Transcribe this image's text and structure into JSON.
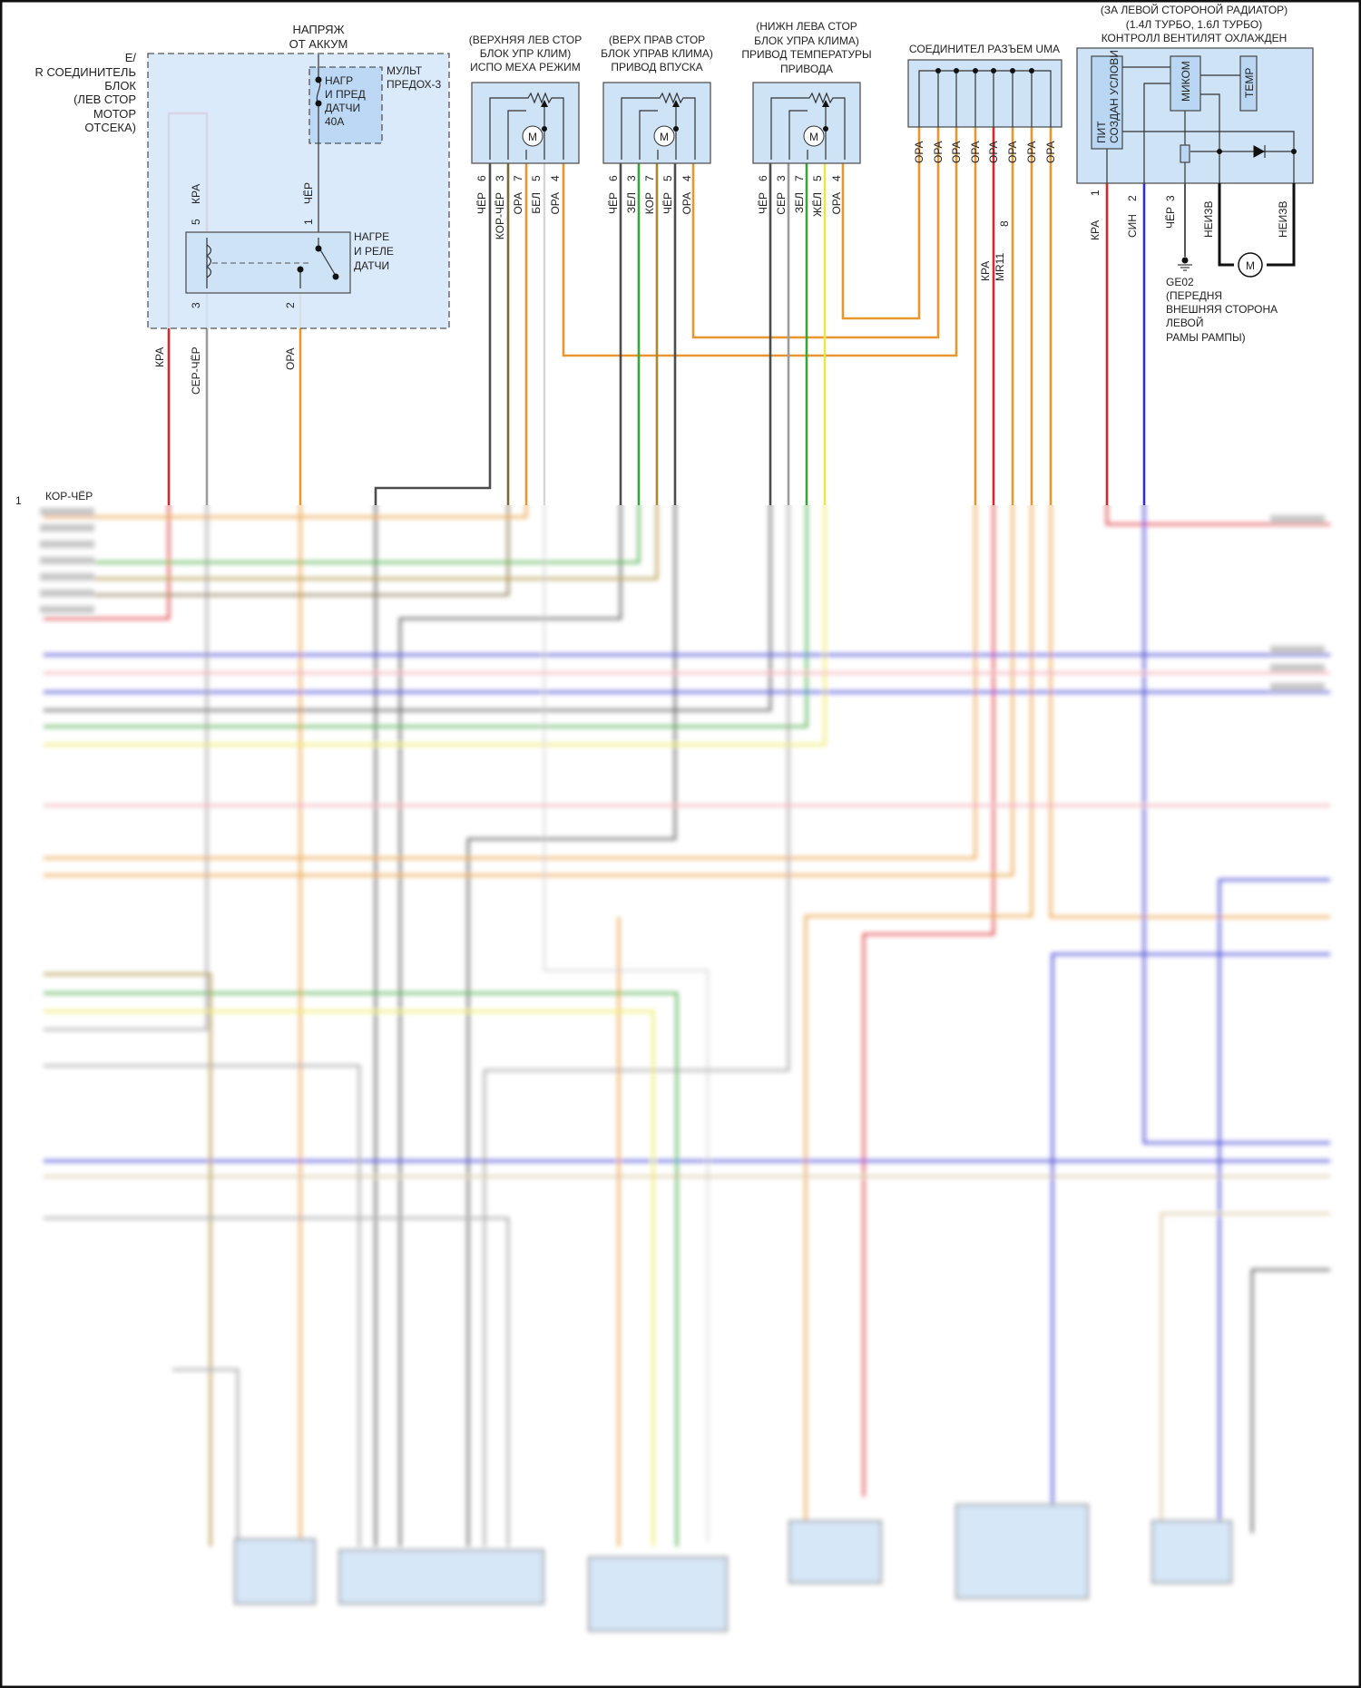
{
  "wire_colors": {
    "red": "#d9262b",
    "orange": "#e8962e",
    "black": "#4d4d4d",
    "gray": "#9c9c9c",
    "white": "#d6d6d6",
    "green": "#3aa537",
    "brown": "#a8892d",
    "yellow": "#ece64a",
    "blue": "#2f2fd0",
    "pink": "#f2a3ab",
    "tan": "#d6c29c",
    "kor_cher": "#7d6a3b"
  },
  "battery": {
    "lines": [
      "НАПРЯЖ",
      "ОТ АККУМ"
    ]
  },
  "er_block": {
    "label_lines": [
      "E/",
      "R СОЕДИНИТЕЛЬ",
      "БЛОК",
      "(ЛЕВ СТОР",
      "МОТОР",
      "ОТСЕКА)"
    ],
    "fuse_lines": [
      "НАГР",
      "И ПРЕД",
      "ДАТЧИ",
      "40А"
    ],
    "fuse_box_lines": [
      "МУЛЬТ",
      "ПРЕДОХ-3"
    ],
    "relay_lines": [
      "НАГРЕ",
      "И РЕЛЕ",
      "ДАТЧИ"
    ],
    "pins": {
      "p5": "5",
      "p1": "1",
      "p3": "3",
      "p2": "2"
    },
    "wires": {
      "p5": "КРА",
      "p1": "ЧЁР"
    },
    "out_wires": {
      "red": "КРА",
      "gray": "СЕР-ЧЁР",
      "orange": "ОРА"
    }
  },
  "left_connector": {
    "pin": "1",
    "wire": "КОР-ЧЁР"
  },
  "mode_actuator": {
    "lines": [
      "(ВЕРХНЯЯ ЛЕВ СТОР",
      "БЛОК УПР КЛИМ)",
      "ИСПО МЕХА РЕЖИМ"
    ],
    "motor": "M",
    "pins": [
      "6",
      "3",
      "7",
      "5",
      "4"
    ],
    "wires": [
      "ЧЁР",
      "КОР-ЧЁР",
      "ОРА",
      "БЕЛ",
      "ОРА"
    ]
  },
  "intake_actuator": {
    "lines": [
      "(ВЕРХ ПРАВ СТОР",
      "БЛОК УПРАВ КЛИМА)",
      "ПРИВОД ВПУСКА"
    ],
    "motor": "M",
    "pins": [
      "6",
      "3",
      "7",
      "5",
      "4"
    ],
    "wires": [
      "ЧЁР",
      "ЗЕЛ",
      "КОР",
      "ЧЁР",
      "ОРА"
    ]
  },
  "temp_actuator": {
    "lines": [
      "(НИЖН ЛЕВА СТОР",
      "БЛОК УПРА КЛИМА)",
      "ПРИВОД ТЕМПЕРАТУРЫ",
      "ПРИВОДА"
    ],
    "motor": "M",
    "pins": [
      "6",
      "3",
      "7",
      "5",
      "4"
    ],
    "wires": [
      "ЧЁР",
      "СЕР",
      "ЗЕЛ",
      "ЖЁЛ",
      "ОРА"
    ]
  },
  "uma_connector": {
    "title": "СОЕДИНИТЕЛ РАЗЪЕМ UMA",
    "wires": [
      "ОРА",
      "ОРА",
      "ОРА",
      "ОРА",
      "ОРА",
      "ОРА",
      "ОРА",
      "ОРА"
    ],
    "red_wire": {
      "pin": "8",
      "connector": "MR11",
      "wire": "КРА"
    }
  },
  "fan_controller": {
    "lines": [
      "(ЗА ЛЕВОЙ СТОРОНОЙ РАДИАТОР)",
      "(1.4Л ТУРБО, 1.6Л ТУРБО)",
      "КОНТРОЛЛ ВЕНТИЛЯТ ОХЛАЖДЕН"
    ],
    "power_block": [
      "ПИТ",
      "СОЗДАН УСЛОВИ"
    ],
    "micom": "МИКОМ",
    "temp": "ТЕМР",
    "pins": [
      "1",
      "2",
      "3"
    ],
    "wires": [
      "КРА",
      "СИН",
      "ЧЁР",
      "НЕИЗВ",
      "НЕИЗВ"
    ],
    "motor": "M",
    "ground_lines": [
      "GE02",
      "(ПЕРЕДНЯ",
      "ВНЕШНЯЯ СТОРОНА",
      "ЛЕВОЙ",
      "РАМЫ РАМПЫ)"
    ]
  }
}
